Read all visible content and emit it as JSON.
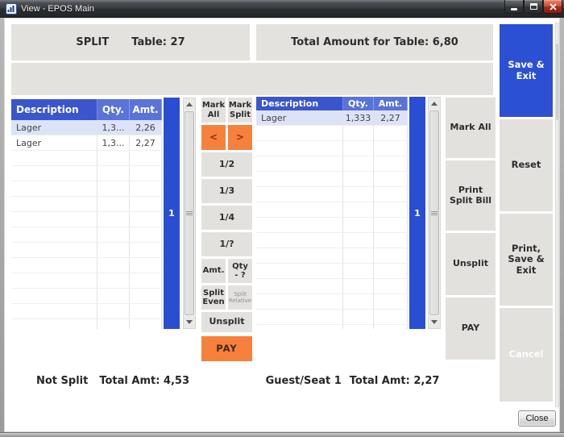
{
  "colors": {
    "header_blue": "#3b55ce",
    "header_blue_light": "#5a73d9",
    "strip_blue": "#2a4ed2",
    "action_blue": "#2b50d4",
    "orange": "#f5813d",
    "selected_row": "#dce3f6",
    "panel_gray": "#e4e2df",
    "button_gray": "#e3e1de"
  },
  "window": {
    "title": "View - EPOS Main",
    "close_button": "Close"
  },
  "header": {
    "split_label": "SPLIT",
    "table_label": "Table: 27",
    "total_amount_label": "Total Amount for Table: 6,80"
  },
  "left_table": {
    "columns": [
      "Description",
      "Qty.",
      "Amt."
    ],
    "rows": [
      [
        "Lager",
        "1,3...",
        "2,26"
      ],
      [
        "Lager",
        "1,3...",
        "2,27"
      ]
    ],
    "selected_row": 0,
    "page_indicator": "1"
  },
  "right_table": {
    "columns": [
      "Description",
      "Qty.",
      "Amt."
    ],
    "rows": [
      [
        "Lager",
        "1,333",
        "2,27"
      ]
    ],
    "selected_row": 0,
    "page_indicator": "1"
  },
  "split_controls": {
    "mark_all": "Mark All",
    "mark_split": "Mark Split",
    "prev": "<",
    "next": ">",
    "one_half": "1/2",
    "one_third": "1/3",
    "one_quarter": "1/4",
    "one_custom": "1/?",
    "amt": "Amt.",
    "qty_line1": "Qty",
    "qty_line2": "- ?",
    "split_even": "Split Even",
    "split_relative": "Split Relative",
    "unsplit": "Unsplit",
    "pay": "PAY"
  },
  "guest_controls": {
    "mark_all": "Mark All",
    "print_split_bill": "Print Split Bill",
    "unsplit": "Unsplit",
    "pay": "PAY"
  },
  "actions": {
    "save_exit": "Save & Exit",
    "reset": "Reset",
    "print_save_exit": "Print, Save & Exit",
    "cancel": "Cancel"
  },
  "footer": {
    "not_split_label": "Not Split",
    "not_split_total": "Total Amt: 4,53",
    "guest_label": "Guest/Seat 1",
    "guest_total": "Total Amt: 2,27"
  }
}
